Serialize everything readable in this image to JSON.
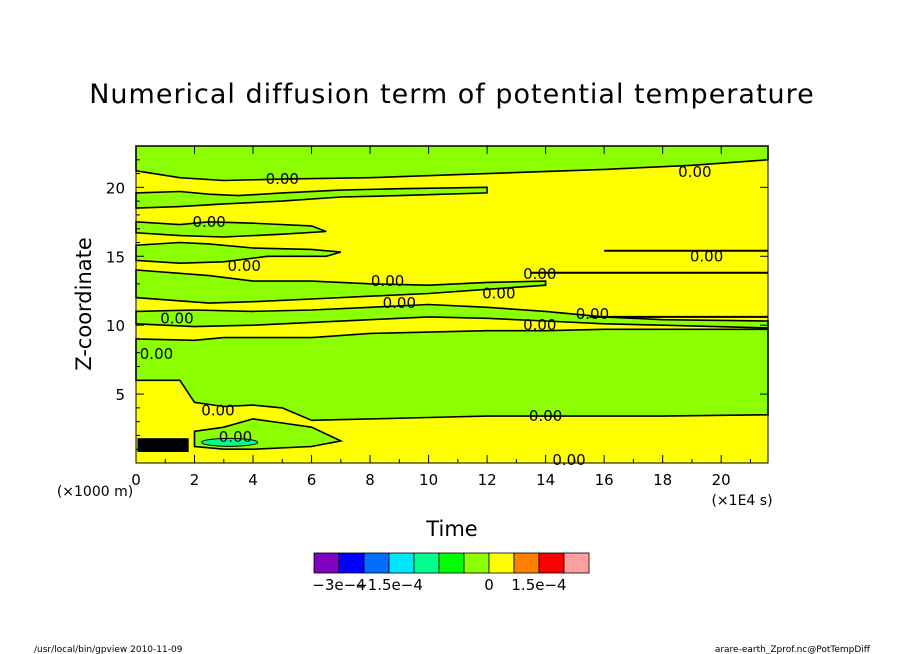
{
  "chart_data": {
    "type": "heatmap",
    "title": "Numerical diffusion term of potential temperature",
    "xlabel": "Time",
    "ylabel": "Z-coordinate",
    "x_unit": "(×1E4 s)",
    "y_unit": "(×1000 m)",
    "xlim": [
      0,
      21.6
    ],
    "ylim": [
      0,
      23
    ],
    "x_ticks": [
      "0",
      "2",
      "4",
      "6",
      "8",
      "10",
      "12",
      "14",
      "16",
      "18",
      "20"
    ],
    "y_ticks": [
      "5",
      "10",
      "15",
      "20"
    ],
    "x_tick_values": [
      0,
      2,
      4,
      6,
      8,
      10,
      12,
      14,
      16,
      18,
      20
    ],
    "y_tick_values": [
      5,
      10,
      15,
      20
    ],
    "contour_label": "0.00",
    "contour_labels": [
      {
        "text": "0.00",
        "x": 19.1,
        "y": 21.1
      },
      {
        "text": "0.00",
        "x": 5.0,
        "y": 20.6
      },
      {
        "text": "0.00",
        "x": 2.5,
        "y": 17.5
      },
      {
        "text": "0.00",
        "x": 3.7,
        "y": 14.3
      },
      {
        "text": "0.00",
        "x": 19.5,
        "y": 15.0
      },
      {
        "text": "0.00",
        "x": 13.8,
        "y": 13.7
      },
      {
        "text": "0.00",
        "x": 8.6,
        "y": 13.2
      },
      {
        "text": "0.00",
        "x": 12.4,
        "y": 12.3
      },
      {
        "text": "0.00",
        "x": 9.0,
        "y": 11.6
      },
      {
        "text": "0.00",
        "x": 15.6,
        "y": 10.8
      },
      {
        "text": "0.00",
        "x": 13.8,
        "y": 10.0
      },
      {
        "text": "0.00",
        "x": 1.4,
        "y": 10.5
      },
      {
        "text": "0.00",
        "x": 0.7,
        "y": 7.9
      },
      {
        "text": "0.00",
        "x": 2.8,
        "y": 3.8
      },
      {
        "text": "0.00",
        "x": 3.4,
        "y": 1.9
      },
      {
        "text": "0.00",
        "x": 14.0,
        "y": 3.4
      },
      {
        "text": "0.00",
        "x": 14.8,
        "y": 0.2
      }
    ],
    "colorbar": {
      "colors": [
        "#7f00bf",
        "#0000ff",
        "#006eff",
        "#00e6ff",
        "#00ff8c",
        "#00ff00",
        "#8cff00",
        "#ffff00",
        "#ff7f00",
        "#ff0000",
        "#ff9f9f"
      ],
      "labels": [
        "−3e−4",
        "−1.5e−4",
        "0",
        "1.5e−4"
      ],
      "label_levels": [
        -0.0003,
        -0.00015,
        0,
        0.00015
      ]
    }
  },
  "footer": {
    "left": "/usr/local/bin/gpview  2010-11-09",
    "right": "arare-earth_Zprof.nc@PotTempDiff"
  }
}
